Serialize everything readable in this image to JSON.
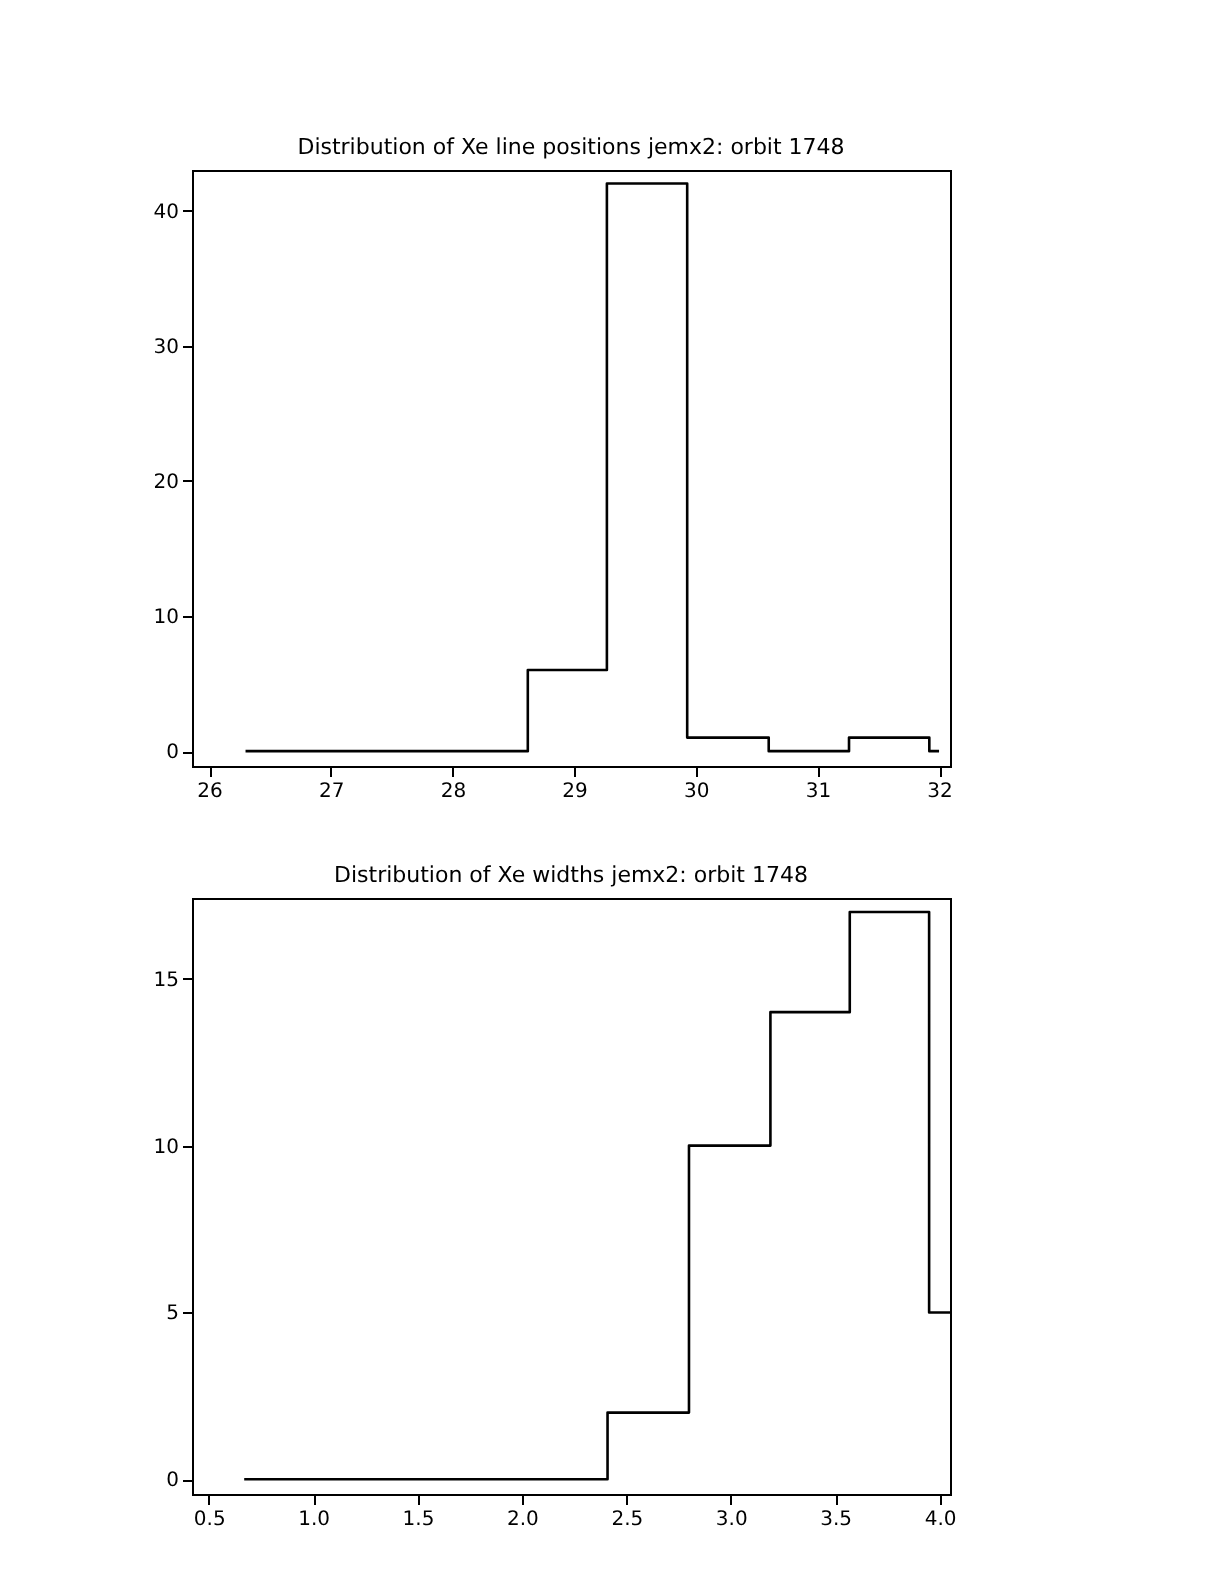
{
  "chart_data": [
    {
      "type": "histogram",
      "title": "Distribution of Xe line positions jemx2: orbit 1748",
      "bins": [
        26.3,
        28.62,
        29.27,
        29.93,
        30.6,
        31.26,
        31.92,
        32.0
      ],
      "values": [
        0,
        6,
        42,
        1,
        0,
        1,
        0
      ],
      "color": "#000000",
      "xlim": [
        25.86,
        32.09
      ],
      "xticks": [
        26,
        27,
        28,
        29,
        30,
        31,
        32
      ],
      "ylim": [
        -1.1,
        43
      ],
      "yticks": [
        0,
        10,
        20,
        30,
        40
      ],
      "grid": false
    },
    {
      "type": "histogram",
      "title": "Distribution of Xe widths jemx2: orbit 1748",
      "bins": [
        0.67,
        2.41,
        2.8,
        3.19,
        3.57,
        3.95,
        4.05
      ],
      "values": [
        0,
        2,
        10,
        14,
        17,
        5
      ],
      "color": "#000000",
      "xlim": [
        0.42,
        4.05
      ],
      "xticks": [
        {
          "value": 0.5,
          "label": "0.5"
        },
        {
          "value": 1,
          "label": "1.0"
        },
        {
          "value": 1.5,
          "label": "1.5"
        },
        {
          "value": 2,
          "label": "2.0"
        },
        {
          "value": 2.5,
          "label": "2.5"
        },
        {
          "value": 3,
          "label": "3.0"
        },
        {
          "value": 3.5,
          "label": "3.5"
        },
        {
          "value": 4,
          "label": "4.0"
        }
      ],
      "ylim": [
        -0.44,
        17.42
      ],
      "yticks": [
        0,
        5,
        10,
        15
      ],
      "grid": false
    }
  ]
}
